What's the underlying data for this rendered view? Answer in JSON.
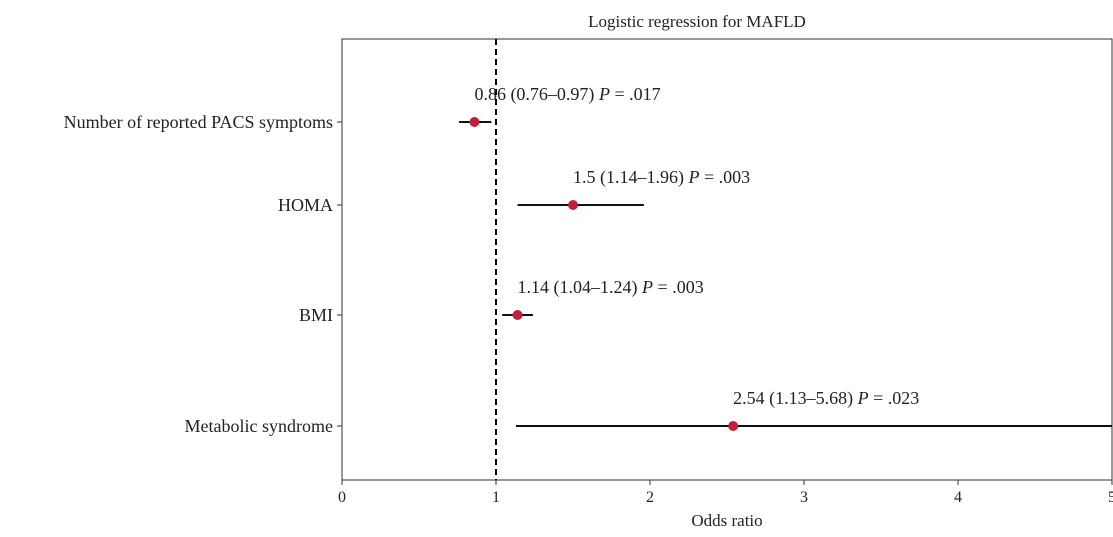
{
  "chart_data": {
    "type": "scatter",
    "title": "Logistic regression for MAFLD",
    "xlabel": "Odds ratio",
    "ylabel": "",
    "xlim": [
      0,
      5
    ],
    "xticks": [
      0,
      1,
      2,
      3,
      4,
      5
    ],
    "reference_line": 1,
    "grid": false,
    "categories": [
      "Number of reported PACS symptoms",
      "HOMA",
      "BMI",
      "Metabolic syndrome"
    ],
    "odds_ratio": [
      0.86,
      1.5,
      1.14,
      2.54
    ],
    "ci_low": [
      0.76,
      1.14,
      1.04,
      1.13
    ],
    "ci_high": [
      0.97,
      1.96,
      1.24,
      5.68
    ],
    "annotations": [
      {
        "estimate": "0.86 (0.76–0.97)",
        "p_label": "P",
        "p_value": "= .017"
      },
      {
        "estimate": "1.5 (1.14–1.96)",
        "p_label": "P",
        "p_value": "= .003"
      },
      {
        "estimate": "1.14 (1.04–1.24)",
        "p_label": "P",
        "p_value": "= .003"
      },
      {
        "estimate": "2.54 (1.13–5.68)",
        "p_label": "P",
        "p_value": "= .023"
      }
    ],
    "colors": {
      "point": "#c0203a",
      "line": "#111111",
      "axis": "#333333"
    }
  }
}
